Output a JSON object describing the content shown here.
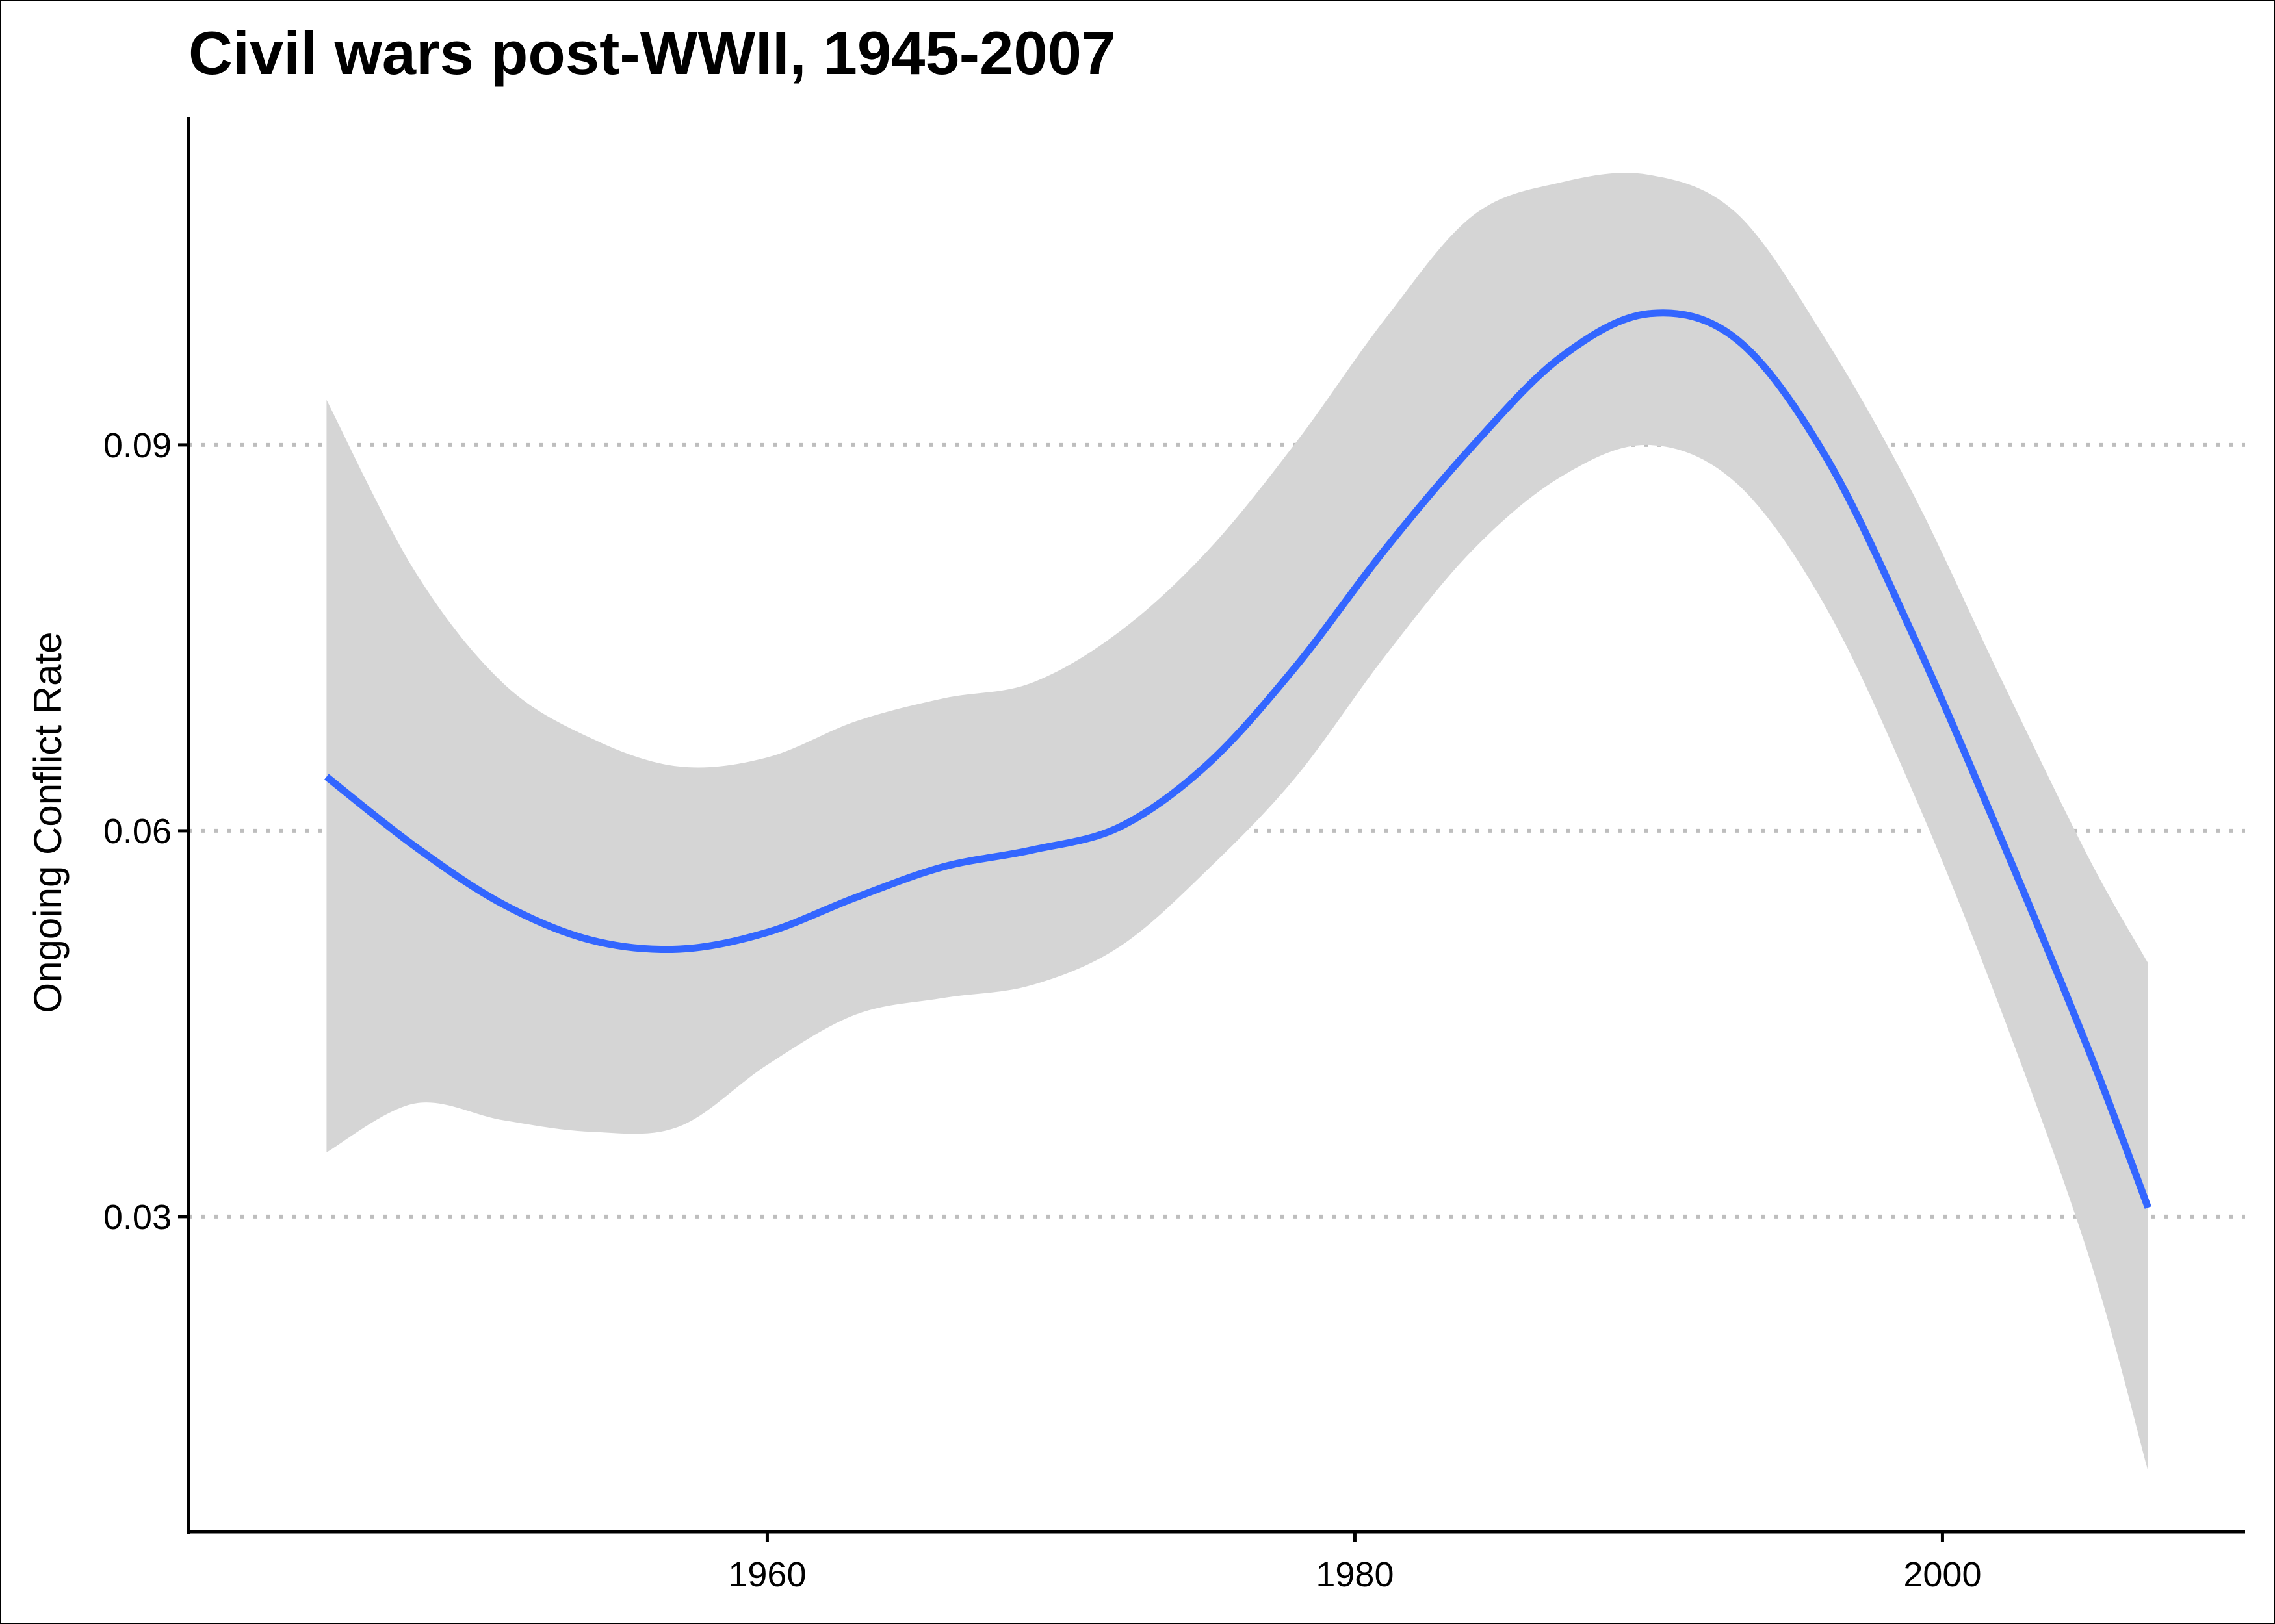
{
  "chart_data": {
    "type": "area",
    "title": "Civil wars post-WWII, 1945-2007",
    "xlabel": "",
    "ylabel": "Ongoing Conflict Rate",
    "xlim": [
      1940.3,
      2010.3
    ],
    "ylim": [
      0.0055,
      0.1155
    ],
    "x_ticks": [
      1960,
      1980,
      2000
    ],
    "x_tick_labels": [
      "1960",
      "1980",
      "2000"
    ],
    "y_ticks": [
      0.03,
      0.06,
      0.09
    ],
    "y_tick_labels": [
      "0.03",
      "0.06",
      "0.09"
    ],
    "grid": "horizontal dotted at y ticks",
    "legend": "none",
    "colors": {
      "line": "#3366FF",
      "ribbon": "#D5D5D5",
      "grid": "#BEBEBE",
      "axis": "#000000"
    },
    "series": [
      {
        "x": [
          1945,
          1948,
          1951,
          1954,
          1957,
          1960,
          1963,
          1966,
          1969,
          1972,
          1975,
          1978,
          1981,
          1984,
          1987,
          1990,
          1993,
          1996,
          1999,
          2002,
          2005,
          2007
        ],
        "y": [
          0.0642,
          0.0588,
          0.0543,
          0.0515,
          0.0508,
          0.0521,
          0.0548,
          0.0572,
          0.0585,
          0.0603,
          0.0652,
          0.0728,
          0.0818,
          0.0899,
          0.0968,
          0.1002,
          0.0982,
          0.0892,
          0.0752,
          0.0594,
          0.0428,
          0.0307
        ],
        "lower": [
          0.035,
          0.0388,
          0.0375,
          0.0366,
          0.037,
          0.0418,
          0.0457,
          0.047,
          0.048,
          0.051,
          0.057,
          0.0642,
          0.0735,
          0.0818,
          0.0875,
          0.09,
          0.087,
          0.0775,
          0.063,
          0.046,
          0.0268,
          0.0102
        ],
        "upper": [
          0.0935,
          0.0802,
          0.0715,
          0.0672,
          0.065,
          0.0657,
          0.0685,
          0.0703,
          0.0715,
          0.0755,
          0.0818,
          0.0902,
          0.0997,
          0.1078,
          0.1104,
          0.111,
          0.108,
          0.0983,
          0.0862,
          0.0718,
          0.0578,
          0.0497
        ]
      }
    ]
  }
}
